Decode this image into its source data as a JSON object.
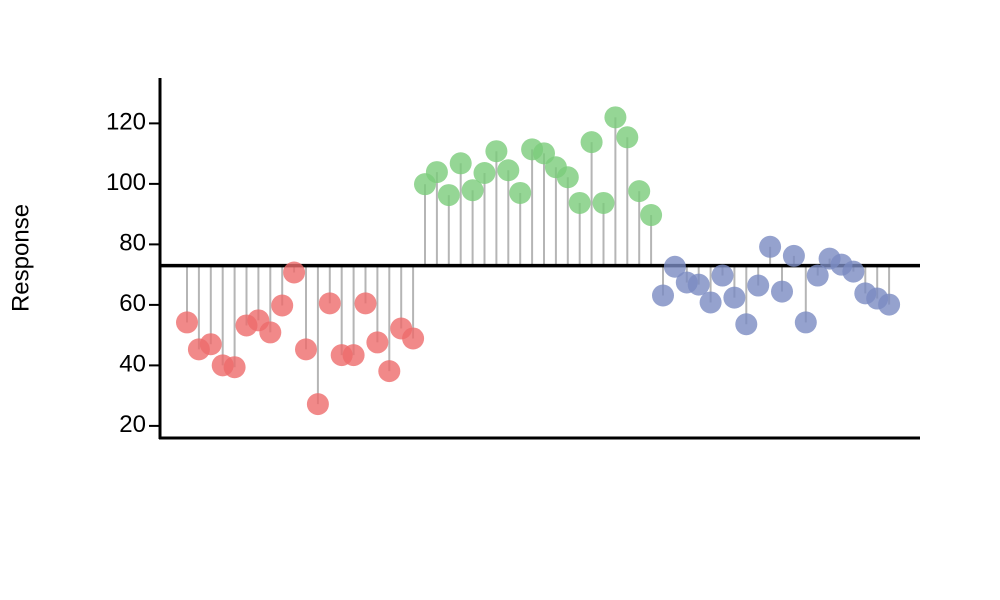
{
  "chart_data": {
    "type": "lollipop",
    "y_label": "Response",
    "ylim": [
      16,
      135
    ],
    "yticks": [
      20,
      40,
      60,
      80,
      100,
      120
    ],
    "reference": 73,
    "series": [
      {
        "color": "#ee6b6b",
        "values": [
          54.2,
          45.3,
          47,
          40,
          39.4,
          53.2,
          54.9,
          50.9,
          59.8,
          70.7,
          45.3,
          27.2,
          60.5,
          43.4,
          43.4,
          60.5,
          47.6,
          38.1,
          52.2,
          48.9
        ]
      },
      {
        "color": "#7acc7a",
        "values": [
          99.9,
          103.9,
          96.3,
          106.8,
          97.9,
          103.6,
          110.8,
          104.5,
          97,
          111.4,
          110.1,
          105.5,
          102.2,
          93.7,
          113.8,
          93.7,
          122,
          115.4,
          97.6,
          89.7
        ]
      },
      {
        "color": "#7a8bc2",
        "values": [
          63.1,
          72.6,
          67.4,
          66.7,
          60.8,
          69.7,
          62.4,
          53.6,
          66.4,
          79.2,
          64.4,
          76.2,
          54.2,
          69.7,
          75.3,
          73.3,
          71,
          63.8,
          62.1,
          60.1
        ]
      }
    ]
  }
}
